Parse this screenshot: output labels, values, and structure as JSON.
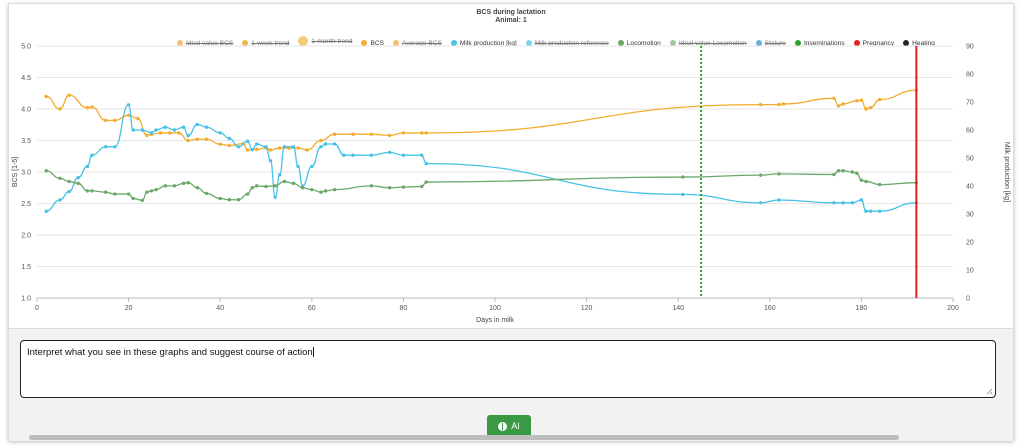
{
  "header": {
    "title": "BCS during lactation",
    "subtitle": "Animal: 1"
  },
  "legend": [
    {
      "label": "Ideal value BCS",
      "color": "#f4c36b",
      "hidden": true,
      "big": false
    },
    {
      "label": "1-week trend",
      "color": "#f0b84a",
      "hidden": true,
      "big": false
    },
    {
      "label": "1-month trend",
      "color": "#f0b84a",
      "hidden": true,
      "big": true
    },
    {
      "label": "BCS",
      "color": "#f2ad2e",
      "hidden": false,
      "big": false
    },
    {
      "label": "Average BCS",
      "color": "#f4c36b",
      "hidden": true,
      "big": false
    },
    {
      "label": "Milk production [kg]",
      "color": "#47c2e6",
      "hidden": false,
      "big": false
    },
    {
      "label": "Milk production reference",
      "color": "#7fd3ef",
      "hidden": true,
      "big": false
    },
    {
      "label": "Locomotion",
      "color": "#6aa86a",
      "hidden": false,
      "big": false
    },
    {
      "label": "Ideal value Locomotion",
      "color": "#9cc89c",
      "hidden": true,
      "big": false
    },
    {
      "label": "Stature",
      "color": "#66b0e0",
      "hidden": true,
      "big": false
    },
    {
      "label": "Inseminations",
      "color": "#2aa52a",
      "hidden": false,
      "big": false
    },
    {
      "label": "Pregnancy",
      "color": "#e02020",
      "hidden": false,
      "big": false
    },
    {
      "label": "Heating",
      "color": "#222222",
      "hidden": false,
      "big": false
    }
  ],
  "prompt": {
    "text": "Interpret what you see in these graphs and suggest course of action"
  },
  "ai_button": {
    "label": "AI"
  },
  "chart_data": {
    "type": "line",
    "title": "BCS during lactation",
    "subtitle": "Animal: 1",
    "xlabel": "Days in milk",
    "ylabel_left": "BCS [1-5]",
    "ylabel_right": "Milk production [kg]",
    "xlim": [
      0,
      200
    ],
    "ylim_left": [
      1.0,
      5.0
    ],
    "ylim_right": [
      0,
      90
    ],
    "x_ticks": [
      0,
      20,
      40,
      60,
      80,
      100,
      120,
      140,
      160,
      180,
      200
    ],
    "y_ticks_left": [
      "1.0",
      "1.5",
      "2.0",
      "2.5",
      "3.0",
      "3.5",
      "4.0",
      "4.5",
      "5.0"
    ],
    "y_ticks_right": [
      0,
      10,
      20,
      30,
      40,
      50,
      60,
      70,
      80,
      90
    ],
    "grid": true,
    "series": [
      {
        "name": "BCS",
        "axis": "left",
        "color": "#f2ad2e",
        "points": [
          [
            2,
            4.2
          ],
          [
            5,
            4.0
          ],
          [
            7,
            4.22
          ],
          [
            11,
            4.02
          ],
          [
            12,
            4.03
          ],
          [
            15,
            3.82
          ],
          [
            17,
            3.82
          ],
          [
            20,
            3.9
          ],
          [
            22,
            3.85
          ],
          [
            24,
            3.58
          ],
          [
            25,
            3.6
          ],
          [
            27,
            3.62
          ],
          [
            29,
            3.62
          ],
          [
            31,
            3.62
          ],
          [
            33,
            3.5
          ],
          [
            35,
            3.52
          ],
          [
            37,
            3.52
          ],
          [
            40,
            3.44
          ],
          [
            42,
            3.42
          ],
          [
            45,
            3.45
          ],
          [
            46,
            3.35
          ],
          [
            48,
            3.36
          ],
          [
            50,
            3.38
          ],
          [
            51,
            3.35
          ],
          [
            53,
            3.38
          ],
          [
            55,
            3.38
          ],
          [
            57,
            3.38
          ],
          [
            59,
            3.35
          ],
          [
            62,
            3.5
          ],
          [
            65,
            3.6
          ],
          [
            69,
            3.6
          ],
          [
            73,
            3.6
          ],
          [
            77,
            3.58
          ],
          [
            80,
            3.62
          ],
          [
            84,
            3.62
          ],
          [
            85,
            3.62
          ],
          [
            158,
            4.07
          ],
          [
            162,
            4.07
          ],
          [
            163,
            4.08
          ],
          [
            174,
            4.17
          ],
          [
            175,
            4.05
          ],
          [
            176,
            4.08
          ],
          [
            179,
            4.13
          ],
          [
            180,
            4.14
          ],
          [
            181,
            4.0
          ],
          [
            182,
            4.02
          ],
          [
            184,
            4.15
          ],
          [
            192,
            4.3
          ]
        ]
      },
      {
        "name": "Milk production [kg]",
        "axis": "right",
        "color": "#47c2e6",
        "points": [
          [
            2,
            31
          ],
          [
            5,
            35
          ],
          [
            7,
            38
          ],
          [
            9,
            43
          ],
          [
            11,
            47
          ],
          [
            12,
            51
          ],
          [
            15,
            54
          ],
          [
            17,
            54
          ],
          [
            20,
            69
          ],
          [
            21,
            60
          ],
          [
            23,
            60
          ],
          [
            25,
            59
          ],
          [
            26,
            60
          ],
          [
            28,
            61
          ],
          [
            30,
            60
          ],
          [
            32,
            61
          ],
          [
            33,
            58
          ],
          [
            35,
            62
          ],
          [
            37,
            61
          ],
          [
            40,
            59
          ],
          [
            42,
            57
          ],
          [
            44,
            54
          ],
          [
            46,
            56
          ],
          [
            47,
            53
          ],
          [
            48,
            55
          ],
          [
            50,
            54
          ],
          [
            51,
            49
          ],
          [
            52,
            36
          ],
          [
            53,
            44
          ],
          [
            54,
            54
          ],
          [
            56,
            54
          ],
          [
            57,
            47
          ],
          [
            58,
            40
          ],
          [
            60,
            47
          ],
          [
            62,
            54
          ],
          [
            63,
            55
          ],
          [
            65,
            55
          ],
          [
            67,
            51
          ],
          [
            69,
            51
          ],
          [
            73,
            51
          ],
          [
            77,
            52
          ],
          [
            80,
            51
          ],
          [
            84,
            51
          ],
          [
            85,
            48
          ],
          [
            141,
            37
          ],
          [
            158,
            34
          ],
          [
            162,
            35
          ],
          [
            174,
            34
          ],
          [
            176,
            34
          ],
          [
            178,
            34
          ],
          [
            180,
            35
          ],
          [
            181,
            31
          ],
          [
            182,
            31
          ],
          [
            184,
            31
          ],
          [
            192,
            34
          ]
        ]
      },
      {
        "name": "Locomotion",
        "axis": "left",
        "color": "#6aa86a",
        "points": [
          [
            2,
            3.02
          ],
          [
            5,
            2.9
          ],
          [
            7,
            2.85
          ],
          [
            9,
            2.82
          ],
          [
            11,
            2.7
          ],
          [
            12,
            2.7
          ],
          [
            15,
            2.68
          ],
          [
            17,
            2.65
          ],
          [
            20,
            2.65
          ],
          [
            21,
            2.58
          ],
          [
            23,
            2.55
          ],
          [
            24,
            2.68
          ],
          [
            25,
            2.7
          ],
          [
            26,
            2.72
          ],
          [
            28,
            2.78
          ],
          [
            30,
            2.78
          ],
          [
            32,
            2.82
          ],
          [
            33,
            2.83
          ],
          [
            35,
            2.75
          ],
          [
            37,
            2.66
          ],
          [
            40,
            2.58
          ],
          [
            42,
            2.56
          ],
          [
            44,
            2.56
          ],
          [
            46,
            2.65
          ],
          [
            47,
            2.75
          ],
          [
            48,
            2.78
          ],
          [
            50,
            2.77
          ],
          [
            52,
            2.78
          ],
          [
            54,
            2.85
          ],
          [
            56,
            2.82
          ],
          [
            58,
            2.75
          ],
          [
            60,
            2.72
          ],
          [
            62,
            2.68
          ],
          [
            63,
            2.7
          ],
          [
            65,
            2.72
          ],
          [
            73,
            2.78
          ],
          [
            77,
            2.75
          ],
          [
            80,
            2.76
          ],
          [
            84,
            2.77
          ],
          [
            85,
            2.84
          ],
          [
            141,
            2.92
          ],
          [
            158,
            2.95
          ],
          [
            162,
            2.97
          ],
          [
            174,
            2.96
          ],
          [
            175,
            3.02
          ],
          [
            176,
            3.02
          ],
          [
            178,
            3.0
          ],
          [
            179,
            2.98
          ],
          [
            180,
            2.87
          ],
          [
            181,
            2.85
          ],
          [
            184,
            2.8
          ],
          [
            192,
            2.83
          ]
        ]
      }
    ],
    "markers": [
      {
        "name": "Inseminations",
        "x": 145,
        "color": "#2aa52a",
        "style": "dotted"
      },
      {
        "name": "Pregnancy",
        "x": 192,
        "color": "#e02020",
        "style": "solid"
      }
    ]
  }
}
